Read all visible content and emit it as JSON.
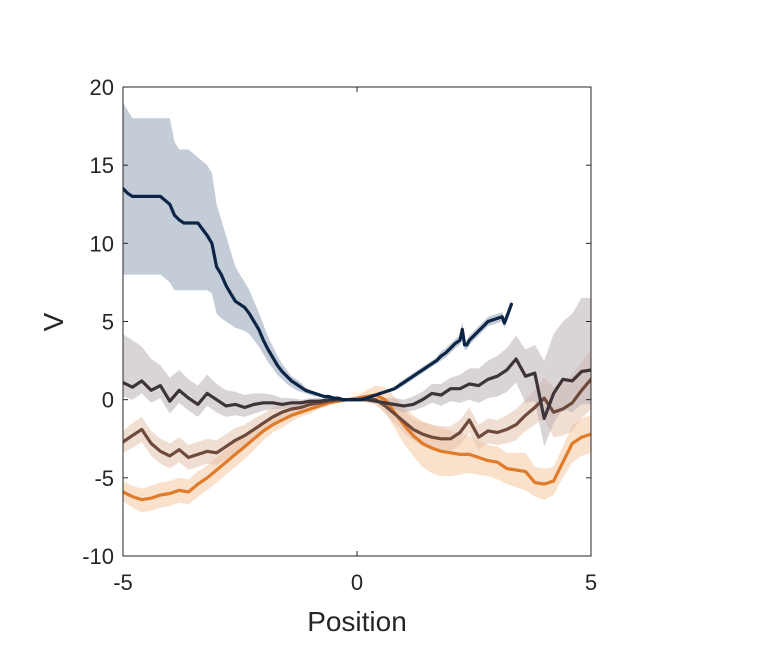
{
  "chart_data": {
    "type": "line",
    "title": "",
    "xlabel": "Position",
    "ylabel": "V",
    "xlim": [
      -5,
      5
    ],
    "ylim": [
      -10,
      20
    ],
    "xticks": [
      -5,
      0,
      5
    ],
    "yticks": [
      -10,
      -5,
      0,
      5,
      10,
      15,
      20
    ],
    "xtick_labels": [
      "-5",
      "0",
      "5"
    ],
    "ytick_labels": [
      "-10",
      "-5",
      "0",
      "5",
      "10",
      "15",
      "20"
    ],
    "grid": false,
    "legend": "none",
    "series": [
      {
        "name": "series-orange",
        "color": "#e07b2a",
        "band_color": "#f6c9a3",
        "band_opacity": 0.55,
        "x": [
          -5,
          -4.8,
          -4.6,
          -4.4,
          -4.2,
          -4.0,
          -3.8,
          -3.6,
          -3.4,
          -3.2,
          -3.0,
          -2.8,
          -2.6,
          -2.4,
          -2.2,
          -2.0,
          -1.8,
          -1.6,
          -1.4,
          -1.2,
          -1.0,
          -0.8,
          -0.6,
          -0.4,
          -0.2,
          0.0,
          0.2,
          0.4,
          0.6,
          0.8,
          1.0,
          1.2,
          1.4,
          1.6,
          1.8,
          2.0,
          2.2,
          2.4,
          2.6,
          2.8,
          3.0,
          3.2,
          3.4,
          3.6,
          3.8,
          4.0,
          4.2,
          4.4,
          4.6,
          4.8,
          5.0
        ],
        "y": [
          -5.9,
          -6.2,
          -6.4,
          -6.3,
          -6.1,
          -6.0,
          -5.8,
          -5.9,
          -5.4,
          -5.0,
          -4.5,
          -4.0,
          -3.5,
          -3.0,
          -2.5,
          -2.0,
          -1.6,
          -1.3,
          -1.0,
          -0.8,
          -0.6,
          -0.4,
          -0.2,
          -0.1,
          0.0,
          0.1,
          0.2,
          0.3,
          0.0,
          -0.8,
          -1.6,
          -2.3,
          -2.8,
          -3.1,
          -3.3,
          -3.4,
          -3.5,
          -3.5,
          -3.7,
          -3.9,
          -4.0,
          -4.4,
          -4.5,
          -4.6,
          -5.3,
          -5.4,
          -5.2,
          -4.0,
          -2.8,
          -2.4,
          -2.2
        ],
        "lower": [
          -6.5,
          -6.9,
          -7.2,
          -7.1,
          -6.9,
          -6.8,
          -6.6,
          -6.7,
          -6.2,
          -5.8,
          -5.3,
          -4.8,
          -4.3,
          -3.8,
          -3.2,
          -2.6,
          -2.1,
          -1.8,
          -1.4,
          -1.1,
          -0.9,
          -0.6,
          -0.4,
          -0.2,
          -0.1,
          0.0,
          -0.2,
          -0.3,
          -0.8,
          -1.8,
          -2.8,
          -3.6,
          -4.3,
          -4.7,
          -4.9,
          -4.9,
          -4.8,
          -4.7,
          -4.8,
          -4.9,
          -5.1,
          -5.4,
          -5.6,
          -5.8,
          -6.2,
          -6.4,
          -6.1,
          -5.0,
          -4.0,
          -3.6,
          -3.4
        ],
        "upper": [
          -5.2,
          -5.5,
          -5.7,
          -5.5,
          -5.3,
          -5.2,
          -5.0,
          -5.1,
          -4.6,
          -4.2,
          -3.7,
          -3.2,
          -2.7,
          -2.2,
          -1.8,
          -1.4,
          -1.1,
          -0.8,
          -0.6,
          -0.5,
          -0.3,
          -0.2,
          0.0,
          0.1,
          0.1,
          0.2,
          0.6,
          0.9,
          0.8,
          0.2,
          -0.4,
          -1.0,
          -1.4,
          -1.6,
          -1.8,
          -2.0,
          -2.2,
          -2.3,
          -2.6,
          -2.9,
          -3.0,
          -3.4,
          -3.4,
          -3.4,
          -4.3,
          -4.4,
          -4.3,
          -3.0,
          -1.6,
          -1.2,
          -1.0
        ]
      },
      {
        "name": "series-brown",
        "color": "#6e4a3c",
        "band_color": "#e5c3ad",
        "band_opacity": 0.55,
        "x": [
          -5,
          -4.8,
          -4.6,
          -4.4,
          -4.2,
          -4.0,
          -3.8,
          -3.6,
          -3.4,
          -3.2,
          -3.0,
          -2.8,
          -2.6,
          -2.4,
          -2.2,
          -2.0,
          -1.8,
          -1.6,
          -1.4,
          -1.2,
          -1.0,
          -0.8,
          -0.6,
          -0.4,
          -0.2,
          0.0,
          0.2,
          0.4,
          0.6,
          0.8,
          1.0,
          1.2,
          1.4,
          1.6,
          1.8,
          2.0,
          2.2,
          2.4,
          2.6,
          2.8,
          3.0,
          3.2,
          3.4,
          3.6,
          3.8,
          4.0,
          4.2,
          4.4,
          4.6,
          4.8,
          5.0
        ],
        "y": [
          -2.7,
          -2.3,
          -1.9,
          -2.8,
          -3.3,
          -3.6,
          -3.2,
          -3.7,
          -3.5,
          -3.3,
          -3.4,
          -3.0,
          -2.6,
          -2.3,
          -1.9,
          -1.5,
          -1.1,
          -0.8,
          -0.6,
          -0.5,
          -0.3,
          -0.2,
          -0.1,
          0.0,
          0.0,
          0.0,
          0.1,
          0.0,
          -0.4,
          -0.9,
          -1.4,
          -1.9,
          -2.2,
          -2.4,
          -2.5,
          -2.5,
          -2.1,
          -1.3,
          -2.4,
          -2.0,
          -2.1,
          -1.9,
          -1.6,
          -1.0,
          -0.5,
          0.1,
          -0.8,
          -0.6,
          -0.2,
          0.6,
          1.3
        ],
        "lower": [
          -3.4,
          -3.1,
          -2.7,
          -3.6,
          -4.1,
          -4.4,
          -4.0,
          -4.5,
          -4.3,
          -4.1,
          -4.2,
          -3.8,
          -3.4,
          -3.0,
          -2.6,
          -2.1,
          -1.7,
          -1.3,
          -1.0,
          -0.8,
          -0.6,
          -0.4,
          -0.2,
          -0.1,
          -0.1,
          -0.1,
          -0.1,
          -0.3,
          -0.9,
          -1.5,
          -2.1,
          -2.6,
          -3.0,
          -3.2,
          -3.3,
          -3.3,
          -2.9,
          -2.1,
          -3.2,
          -2.8,
          -2.9,
          -2.8,
          -2.6,
          -2.0,
          -1.6,
          -1.2,
          -2.4,
          -2.3,
          -2.0,
          -1.2,
          -0.6
        ],
        "upper": [
          -2.0,
          -1.5,
          -1.1,
          -2.0,
          -2.5,
          -2.8,
          -2.4,
          -2.9,
          -2.7,
          -2.5,
          -2.6,
          -2.2,
          -1.8,
          -1.6,
          -1.2,
          -0.9,
          -0.5,
          -0.3,
          -0.2,
          -0.2,
          0.0,
          0.0,
          0.0,
          0.1,
          0.1,
          0.1,
          0.3,
          0.3,
          0.1,
          -0.3,
          -0.7,
          -1.2,
          -1.4,
          -1.6,
          -1.7,
          -1.7,
          -1.3,
          -0.5,
          -1.6,
          -1.2,
          -1.3,
          -1.0,
          -0.6,
          0.0,
          0.6,
          1.4,
          0.8,
          1.1,
          1.6,
          2.4,
          3.2
        ]
      },
      {
        "name": "series-dark-gray",
        "color": "#3e3438",
        "band_color": "#b9b2b5",
        "band_opacity": 0.55,
        "x": [
          -5,
          -4.8,
          -4.6,
          -4.4,
          -4.2,
          -4.0,
          -3.8,
          -3.6,
          -3.4,
          -3.2,
          -3.0,
          -2.8,
          -2.6,
          -2.4,
          -2.2,
          -2.0,
          -1.8,
          -1.6,
          -1.4,
          -1.2,
          -1.0,
          -0.8,
          -0.6,
          -0.4,
          -0.2,
          0.0,
          0.2,
          0.4,
          0.6,
          0.8,
          1.0,
          1.2,
          1.4,
          1.6,
          1.8,
          2.0,
          2.2,
          2.4,
          2.6,
          2.8,
          3.0,
          3.2,
          3.4,
          3.6,
          3.8,
          4.0,
          4.2,
          4.4,
          4.6,
          4.8,
          5.0
        ],
        "y": [
          1.1,
          0.8,
          1.2,
          0.6,
          0.9,
          -0.1,
          0.6,
          0.1,
          -0.3,
          0.4,
          0.0,
          -0.4,
          -0.3,
          -0.5,
          -0.3,
          -0.2,
          -0.2,
          -0.3,
          -0.2,
          -0.2,
          -0.1,
          -0.1,
          0.0,
          0.0,
          0.0,
          0.0,
          0.0,
          -0.1,
          -0.2,
          -0.3,
          -0.4,
          -0.3,
          0.0,
          0.4,
          0.3,
          0.7,
          0.7,
          1.0,
          0.9,
          1.3,
          1.5,
          1.9,
          2.6,
          1.5,
          1.7,
          -1.2,
          0.4,
          1.3,
          1.2,
          1.8,
          1.9
        ],
        "lower": [
          0.2,
          0.0,
          0.4,
          -0.2,
          0.1,
          -0.9,
          -0.2,
          -0.7,
          -1.1,
          -0.4,
          -0.8,
          -1.1,
          -1.0,
          -1.1,
          -0.9,
          -0.7,
          -0.6,
          -0.6,
          -0.5,
          -0.4,
          -0.3,
          -0.2,
          -0.1,
          -0.1,
          -0.1,
          -0.1,
          -0.1,
          -0.2,
          -0.4,
          -0.6,
          -0.8,
          -0.7,
          -0.5,
          -0.2,
          -0.4,
          -0.1,
          -0.2,
          0.0,
          -0.2,
          0.1,
          0.2,
          0.5,
          1.1,
          -0.2,
          -0.1,
          -3.0,
          -1.5,
          -0.6,
          -0.8,
          -0.3,
          -0.3
        ],
        "upper": [
          4.2,
          3.8,
          3.4,
          2.6,
          2.2,
          1.4,
          1.9,
          1.3,
          0.9,
          1.6,
          1.0,
          0.6,
          0.5,
          0.3,
          0.4,
          0.4,
          0.3,
          0.1,
          0.1,
          0.0,
          0.1,
          0.1,
          0.1,
          0.1,
          0.1,
          0.1,
          0.1,
          0.1,
          0.1,
          0.1,
          0.0,
          0.2,
          0.5,
          1.0,
          1.0,
          1.4,
          1.6,
          2.0,
          2.0,
          2.5,
          2.8,
          3.3,
          4.1,
          3.2,
          3.5,
          2.5,
          4.2,
          5.0,
          5.5,
          6.5,
          6.5
        ]
      },
      {
        "name": "series-navy",
        "color": "#0b2546",
        "band_color": "#c4ccd8",
        "band_opacity": 1.0,
        "x": [
          -5.0,
          -4.9,
          -4.8,
          -4.6,
          -4.4,
          -4.2,
          -4.0,
          -3.9,
          -3.8,
          -3.7,
          -3.6,
          -3.4,
          -3.2,
          -3.1,
          -3.0,
          -2.9,
          -2.8,
          -2.7,
          -2.6,
          -2.5,
          -2.4,
          -2.3,
          -2.2,
          -2.1,
          -2.0,
          -1.9,
          -1.8,
          -1.7,
          -1.6,
          -1.5,
          -1.4,
          -1.3,
          -1.2,
          -1.1,
          -1.0,
          -0.9,
          -0.8,
          -0.7,
          -0.6,
          -0.5,
          -0.4,
          -0.3,
          -0.2,
          -0.1,
          0.0,
          0.1,
          0.2,
          0.3,
          0.4,
          0.5,
          0.6,
          0.7,
          0.8,
          0.9,
          1.0,
          1.1,
          1.2,
          1.3,
          1.4,
          1.5,
          1.6,
          1.7,
          1.8,
          1.9,
          2.0,
          2.1,
          2.2,
          2.25,
          2.3,
          2.35,
          2.4,
          2.5,
          2.6,
          2.7,
          2.8,
          2.9,
          3.0,
          3.1,
          3.15,
          3.2,
          3.3
        ],
        "y": [
          13.5,
          13.2,
          13.0,
          13.0,
          13.0,
          13.0,
          12.5,
          11.8,
          11.5,
          11.3,
          11.3,
          11.3,
          10.5,
          10.0,
          8.5,
          8.0,
          7.3,
          6.8,
          6.3,
          6.1,
          5.9,
          5.5,
          5.0,
          4.5,
          3.8,
          3.2,
          2.7,
          2.2,
          1.8,
          1.5,
          1.2,
          1.0,
          0.8,
          0.6,
          0.5,
          0.4,
          0.3,
          0.2,
          0.2,
          0.1,
          0.1,
          0.0,
          0.0,
          0.0,
          0.0,
          0.0,
          0.1,
          0.2,
          0.3,
          0.4,
          0.5,
          0.6,
          0.7,
          0.9,
          1.1,
          1.3,
          1.5,
          1.7,
          1.9,
          2.1,
          2.3,
          2.5,
          2.8,
          3.0,
          3.3,
          3.6,
          3.8,
          4.5,
          3.5,
          3.5,
          3.8,
          4.1,
          4.4,
          4.7,
          5.0,
          5.1,
          5.2,
          5.3,
          4.9,
          5.3,
          6.1
        ],
        "lower": [
          8.0,
          8.0,
          8.0,
          8.0,
          8.0,
          8.0,
          7.5,
          7.0,
          7.0,
          7.0,
          7.0,
          7.0,
          7.0,
          6.8,
          5.5,
          5.2,
          5.0,
          4.8,
          4.6,
          4.5,
          4.4,
          4.2,
          3.8,
          3.4,
          2.9,
          2.4,
          2.0,
          1.6,
          1.3,
          1.0,
          0.8,
          0.6,
          0.5,
          0.4,
          0.3,
          0.2,
          0.2,
          0.1,
          0.1,
          0.0,
          0.0,
          -0.1,
          -0.1,
          -0.1,
          -0.1,
          -0.1,
          0.0,
          0.1,
          0.2,
          0.3,
          0.4,
          0.5,
          0.6,
          0.7,
          0.9,
          1.1,
          1.3,
          1.5,
          1.7,
          1.9,
          2.1,
          2.3,
          2.5,
          2.7,
          3.0,
          3.3,
          3.5,
          4.0,
          3.2,
          3.2,
          3.5,
          3.8,
          4.1,
          4.4,
          4.7,
          4.8,
          4.9,
          5.0,
          4.6,
          5.0,
          5.8
        ],
        "upper": [
          19.0,
          18.5,
          18.0,
          18.0,
          18.0,
          18.0,
          18.0,
          16.5,
          16.0,
          16.0,
          16.0,
          15.5,
          15.0,
          14.5,
          12.5,
          11.5,
          10.5,
          9.5,
          8.5,
          8.0,
          7.5,
          7.0,
          6.3,
          5.6,
          4.8,
          4.0,
          3.4,
          2.8,
          2.3,
          1.9,
          1.5,
          1.3,
          1.1,
          0.8,
          0.6,
          0.5,
          0.4,
          0.3,
          0.3,
          0.2,
          0.2,
          0.1,
          0.1,
          0.1,
          0.1,
          0.1,
          0.2,
          0.3,
          0.4,
          0.5,
          0.6,
          0.7,
          0.8,
          1.1,
          1.3,
          1.5,
          1.7,
          1.9,
          2.1,
          2.3,
          2.5,
          2.7,
          3.1,
          3.3,
          3.6,
          3.9,
          4.1,
          5.0,
          3.8,
          3.8,
          4.1,
          4.4,
          4.7,
          5.0,
          5.3,
          5.4,
          5.5,
          5.6,
          5.2,
          5.6,
          6.4
        ]
      }
    ]
  }
}
